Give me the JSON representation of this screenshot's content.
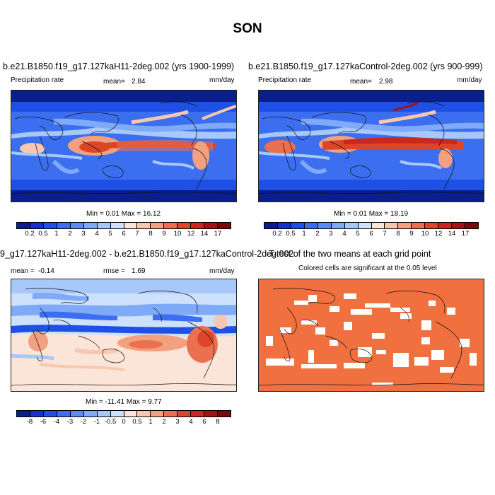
{
  "figure": {
    "title": "SON"
  },
  "panels": {
    "p1": {
      "title": "b.e21.B1850.f19_g17.127kaH11-2deg.002 (yrs 1900-1999)",
      "variable": "Precipitation rate",
      "mean_label": "mean=",
      "mean_value": "2.84",
      "units": "mm/day",
      "minmax": "Min =  0.01 Max =  16.12"
    },
    "p2": {
      "title": "b.e21.B1850.f19_g17.127kaControl-2deg.002 (yrs 900-999)",
      "variable": "Precipitation rate",
      "mean_label": "mean=",
      "mean_value": "2.98",
      "units": "mm/day",
      "minmax": "Min =  0.01 Max =  18.19"
    },
    "p3": {
      "title": "9_g17.127kaH11-2deg.002 - b.e21.B1850.f19_g17.127kaControl-2deg.002",
      "mean_label": "mean =",
      "mean_value": "-0.14",
      "rmse_label": "rmse =",
      "rmse_value": "1.69",
      "units": "mm/day",
      "minmax": "Min = -11.41 Max =  9.77"
    },
    "p4": {
      "title": "T-test of the two means at each grid point",
      "subtitle": "Colored cells are significant at the 0.05 level"
    }
  },
  "colorbars": {
    "precip": {
      "ticks": [
        "0.2",
        "0.5",
        "1",
        "2",
        "3",
        "4",
        "5",
        "6",
        "7",
        "8",
        "9",
        "10",
        "12",
        "14",
        "17"
      ],
      "colors": [
        "#0a1e8c",
        "#1432c8",
        "#1e50e6",
        "#3c6ef0",
        "#5a8cf5",
        "#7eaaf8",
        "#a8c8fa",
        "#cde0fc",
        "#fbe4d8",
        "#f7c8b0",
        "#f2a080",
        "#ea7050",
        "#dc4628",
        "#c8281e",
        "#a01414",
        "#780a0a"
      ]
    },
    "diff": {
      "ticks": [
        "-8",
        "-6",
        "-4",
        "-3",
        "-2",
        "-1",
        "-0.5",
        "0",
        "0.5",
        "1",
        "2",
        "3",
        "4",
        "6",
        "8"
      ],
      "colors": [
        "#0a1e8c",
        "#1432c8",
        "#1e50e6",
        "#3c6ef0",
        "#5a8cf5",
        "#7eaaf8",
        "#a8c8fa",
        "#cde0fc",
        "#fbe4d8",
        "#f7c8b0",
        "#f2a080",
        "#ea7050",
        "#dc4628",
        "#c8281e",
        "#a01414",
        "#780a0a"
      ]
    }
  },
  "colors": {
    "significance": "#f07040",
    "background": "#ffffff"
  }
}
